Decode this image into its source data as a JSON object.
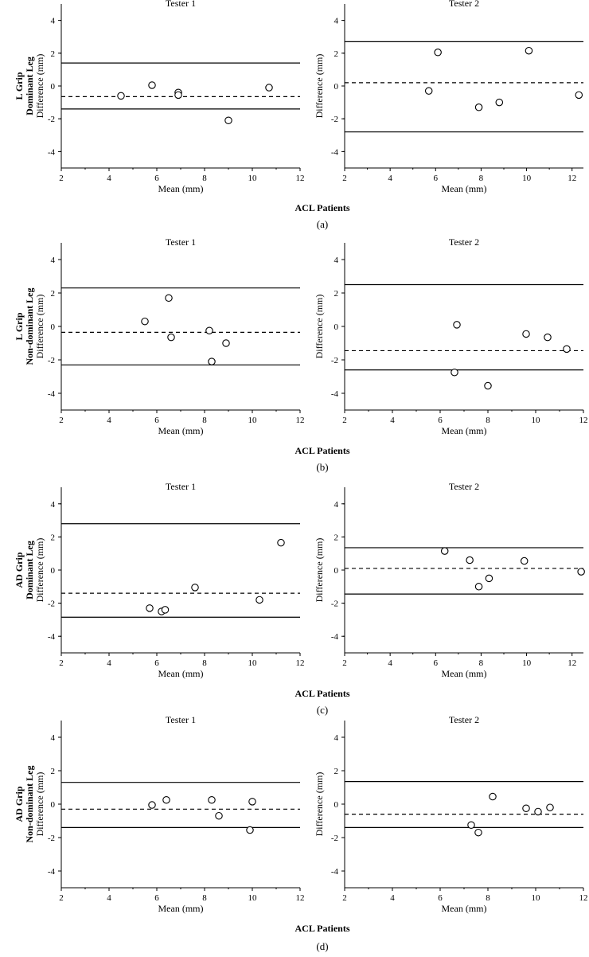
{
  "chart_data": [
    {
      "type": "scatter",
      "panel": "a",
      "title": "Tester 1",
      "ylabel_group": "L Grip",
      "ylabel_line2": "Dominant Leg",
      "ylabel": "Difference (mm)",
      "xlabel": "Mean (mm)",
      "xlim": [
        2,
        12
      ],
      "ylim": [
        -5,
        5
      ],
      "xticks": [
        2,
        4,
        6,
        8,
        10,
        12
      ],
      "yticks": [
        4,
        2,
        0,
        -2,
        -4
      ],
      "x": [
        4.5,
        5.8,
        6.9,
        6.9,
        9.0,
        10.7
      ],
      "y": [
        -0.6,
        0.05,
        -0.4,
        -0.55,
        -2.1,
        -0.1
      ],
      "mean_line": -0.65,
      "upper_loa": 1.4,
      "lower_loa": -1.4
    },
    {
      "type": "scatter",
      "panel": "a",
      "title": "Tester 2",
      "ylabel": "Difference (mm)",
      "xlabel": "Mean (mm)",
      "xlim": [
        2,
        12.5
      ],
      "ylim": [
        -5,
        5
      ],
      "xticks": [
        2,
        4,
        6,
        8,
        10,
        12
      ],
      "yticks": [
        4,
        2,
        0,
        -2,
        -4
      ],
      "x": [
        5.7,
        6.1,
        7.9,
        8.8,
        10.1,
        12.3
      ],
      "y": [
        -0.3,
        2.05,
        -1.3,
        -1.0,
        2.15,
        -0.55
      ],
      "mean_line": 0.2,
      "upper_loa": 2.7,
      "lower_loa": -2.8
    },
    {
      "type": "scatter",
      "panel": "b",
      "title": "Tester 1",
      "ylabel_group": "L Grip",
      "ylabel_line2": "Non-dominant Leg",
      "ylabel": "Difference (mm)",
      "xlabel": "Mean (mm)",
      "xlim": [
        2,
        12
      ],
      "ylim": [
        -5,
        5
      ],
      "xticks": [
        2,
        4,
        6,
        8,
        10,
        12
      ],
      "yticks": [
        4,
        2,
        0,
        -2,
        -4
      ],
      "x": [
        5.5,
        6.5,
        6.6,
        8.2,
        8.3,
        8.9
      ],
      "y": [
        0.3,
        1.7,
        -0.65,
        -0.25,
        -2.1,
        -1.0
      ],
      "mean_line": -0.35,
      "upper_loa": 2.3,
      "lower_loa": -2.3
    },
    {
      "type": "scatter",
      "panel": "b",
      "title": "Tester 2",
      "ylabel": "Difference (mm)",
      "xlabel": "Mean (mm)",
      "xlim": [
        2,
        12
      ],
      "ylim": [
        -5,
        5
      ],
      "xticks": [
        2,
        4,
        6,
        8,
        10,
        12
      ],
      "yticks": [
        4,
        2,
        0,
        -2,
        -4
      ],
      "x": [
        6.6,
        6.7,
        8.0,
        9.6,
        10.5,
        11.3
      ],
      "y": [
        -2.75,
        0.1,
        -3.55,
        -0.45,
        -0.65,
        -1.35
      ],
      "mean_line": -1.45,
      "upper_loa": 2.5,
      "lower_loa": -2.6
    },
    {
      "type": "scatter",
      "panel": "c",
      "title": "Tester 1",
      "ylabel_group": "AD Grip",
      "ylabel_line2": "Dominant Leg",
      "ylabel": "Difference (mm)",
      "xlabel": "Mean (mm)",
      "xlim": [
        2,
        12
      ],
      "ylim": [
        -5,
        5
      ],
      "xticks": [
        2,
        4,
        6,
        8,
        10,
        12
      ],
      "yticks": [
        4,
        2,
        0,
        -2,
        -4
      ],
      "x": [
        5.7,
        6.2,
        6.35,
        7.6,
        10.3,
        11.2
      ],
      "y": [
        -2.3,
        -2.5,
        -2.4,
        -1.05,
        -1.8,
        1.65
      ],
      "mean_line": -1.4,
      "upper_loa": 2.8,
      "lower_loa": -2.85
    },
    {
      "type": "scatter",
      "panel": "c",
      "title": "Tester 2",
      "ylabel": "Difference (mm)",
      "xlabel": "Mean (mm)",
      "xlim": [
        2,
        12.5
      ],
      "ylim": [
        -5,
        5
      ],
      "xticks": [
        2,
        4,
        6,
        8,
        10,
        12
      ],
      "yticks": [
        4,
        2,
        0,
        -2,
        -4
      ],
      "x": [
        6.4,
        7.5,
        7.9,
        8.35,
        9.9,
        12.4
      ],
      "y": [
        1.15,
        0.6,
        -1.0,
        -0.5,
        0.55,
        -0.1
      ],
      "mean_line": 0.1,
      "upper_loa": 1.35,
      "lower_loa": -1.45
    },
    {
      "type": "scatter",
      "panel": "d",
      "title": "Tester 1",
      "ylabel_group": "AD Grip",
      "ylabel_line2": "Non-dominant Leg",
      "ylabel": "Difference (mm)",
      "xlabel": "Mean (mm)",
      "xlim": [
        2,
        12
      ],
      "ylim": [
        -5,
        5
      ],
      "xticks": [
        2,
        4,
        6,
        8,
        10,
        12
      ],
      "yticks": [
        4,
        2,
        0,
        -2,
        -4
      ],
      "x": [
        5.8,
        6.4,
        8.3,
        8.6,
        9.9,
        10.0
      ],
      "y": [
        -0.05,
        0.25,
        0.25,
        -0.7,
        -1.55,
        0.15
      ],
      "mean_line": -0.3,
      "upper_loa": 1.3,
      "lower_loa": -1.4
    },
    {
      "type": "scatter",
      "panel": "d",
      "title": "Tester 2",
      "ylabel": "Difference (mm)",
      "xlabel": "Mean (mm)",
      "xlim": [
        2,
        12
      ],
      "ylim": [
        -5,
        5
      ],
      "xticks": [
        2,
        4,
        6,
        8,
        10,
        12
      ],
      "yticks": [
        4,
        2,
        0,
        -2,
        -4
      ],
      "x": [
        7.3,
        7.6,
        8.2,
        9.6,
        10.1,
        10.6
      ],
      "y": [
        -1.25,
        -1.7,
        0.45,
        -0.25,
        -0.45,
        -0.2
      ],
      "mean_line": -0.6,
      "upper_loa": 1.35,
      "lower_loa": -1.4
    }
  ],
  "section_title": "ACL Patients",
  "panel_letters": [
    "(a)",
    "(b)",
    "(c)",
    "(d)"
  ]
}
